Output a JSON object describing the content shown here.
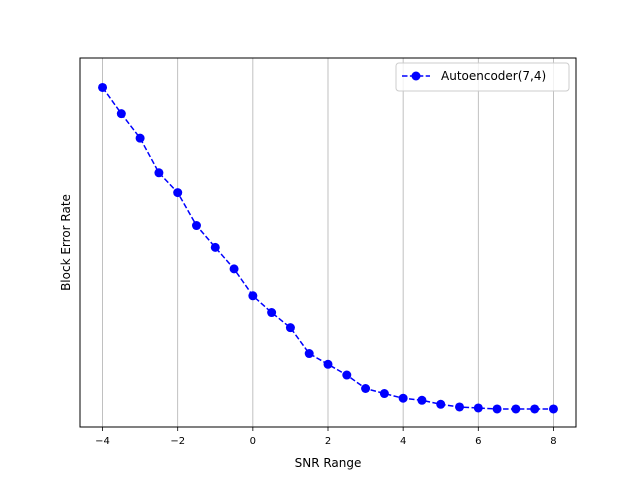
{
  "chart_data": {
    "type": "line",
    "title": "",
    "xlabel": "SNR Range",
    "ylabel": "Block Error Rate",
    "xlim": [
      -4.6,
      8.6
    ],
    "ylim": [
      0,
      1
    ],
    "xticks": [
      -4,
      -2,
      0,
      2,
      4,
      6,
      8
    ],
    "xtick_labels": [
      "−4",
      "−2",
      "0",
      "2",
      "4",
      "6",
      "8"
    ],
    "yticks_visible": false,
    "grid": "x-vertical",
    "legend_position": "top-right",
    "series": [
      {
        "name": "Autoencoder(7,4)",
        "color": "#0000ff",
        "line_style": "dashed",
        "marker": "circle",
        "x": [
          -4,
          -3.5,
          -3,
          -2.5,
          -2,
          -1.5,
          -1,
          -0.5,
          0,
          0.5,
          1,
          1.5,
          2,
          2.5,
          3,
          3.5,
          4,
          4.5,
          5,
          5.5,
          6,
          6.5,
          7,
          7.5,
          8
        ],
        "y": [
          0.96,
          0.882,
          0.809,
          0.706,
          0.647,
          0.549,
          0.484,
          0.42,
          0.34,
          0.29,
          0.245,
          0.168,
          0.136,
          0.104,
          0.064,
          0.049,
          0.035,
          0.029,
          0.017,
          0.009,
          0.006,
          0.003,
          0.003,
          0.003,
          0.003
        ]
      }
    ]
  }
}
